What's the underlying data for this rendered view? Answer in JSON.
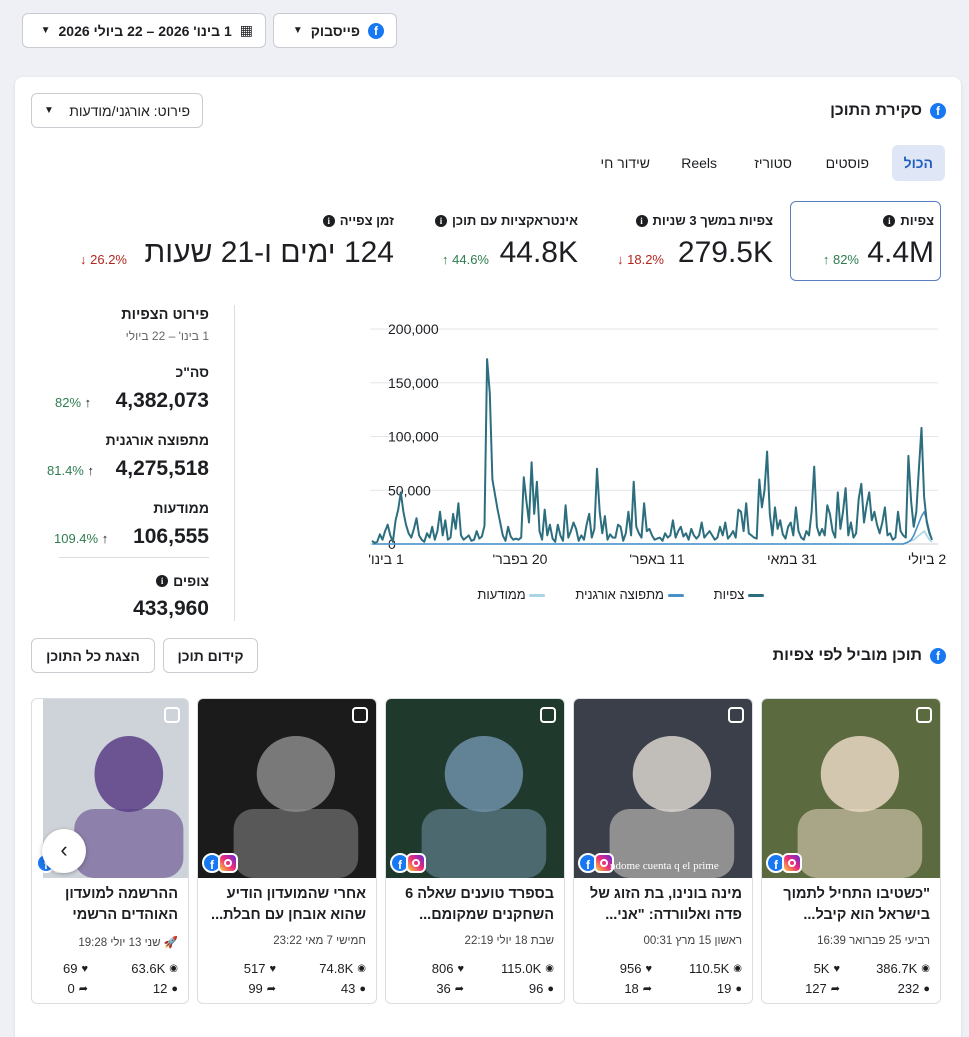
{
  "filters": {
    "platform_label": "פייסבוק",
    "date_range_label": "1 בינו' 2026 – 22 ביולי 2026"
  },
  "overview": {
    "title": "סקירת התוכן",
    "breakdown_label": "פירוט: אורגני/מודעות",
    "tabs": [
      {
        "label": "הכול",
        "active": true
      },
      {
        "label": "פוסטים"
      },
      {
        "label": "סטוריז"
      },
      {
        "label": "Reels"
      },
      {
        "label": "שידור חי"
      }
    ]
  },
  "metrics": [
    {
      "label": "צפיות",
      "value": "4.4M",
      "change": "82%",
      "direction": "up"
    },
    {
      "label": "צפיות במשך 3 שניות",
      "value": "279.5K",
      "change": "18.2%",
      "direction": "down"
    },
    {
      "label": "אינטראקציות עם תוכן",
      "value": "44.8K",
      "change": "44.6%",
      "direction": "up"
    },
    {
      "label": "זמן צפייה",
      "value": "124 ימים ו-21 שעות",
      "change": "26.2%",
      "direction": "down"
    }
  ],
  "breakdown": {
    "title": "פירוט הצפיות",
    "range": "1 בינו' – 22 ביולי",
    "rows": [
      {
        "label": "סה\"כ",
        "value": "4,382,073",
        "change": "82%"
      },
      {
        "label": "מתפוצה אורגנית",
        "value": "4,275,518",
        "change": "81.4%"
      },
      {
        "label": "ממודעות",
        "value": "106,555",
        "change": "109.4%"
      }
    ],
    "viewers_label": "צופים",
    "viewers_value": "433,960"
  },
  "chart_data": {
    "type": "line",
    "y_ticks": [
      "200,000",
      "150,000",
      "100,000",
      "50,000",
      "0"
    ],
    "ylim": [
      0,
      200000
    ],
    "x_ticks": [
      "1 בינו'",
      "20 בפבר'",
      "11 באפר'",
      "31 במאי",
      "2 ביולי"
    ],
    "legend": [
      "צפיות",
      "מתפוצה אורגנית",
      "ממודעות"
    ],
    "series": [
      {
        "name": "צפיות",
        "color": "#2d6e7e",
        "values": [
          3000,
          1000,
          2000,
          9000,
          4000,
          12000,
          18000,
          8000,
          2000,
          22000,
          32000,
          48000,
          30000,
          18000,
          10000,
          6000,
          14000,
          24000,
          8000,
          4000,
          2000,
          10000,
          6000,
          16000,
          4000,
          12000,
          30000,
          8000,
          22000,
          4000,
          6000,
          28000,
          14000,
          38000,
          8000,
          4000,
          6000,
          8000,
          3000,
          4000,
          12000,
          5000,
          7000,
          17000,
          172000,
          140000,
          60000,
          46000,
          32000,
          20000,
          8000,
          3000,
          16000,
          7000,
          4000,
          5000,
          4000,
          6000,
          62000,
          40000,
          20000,
          76000,
          28000,
          58000,
          12000,
          4000,
          32000,
          8000,
          18000,
          5000,
          2000,
          18000,
          8000,
          3000,
          36000,
          6000,
          12000,
          20000,
          14000,
          3000,
          8000,
          4000,
          18000,
          28000,
          6000,
          14000,
          70000,
          30000,
          10000,
          26000,
          4000,
          9000,
          6000,
          6000,
          18000,
          16000,
          3000,
          10000,
          30000,
          8000,
          58000,
          16000,
          10000,
          6000,
          38000,
          12000,
          14000,
          8000,
          4000,
          5000,
          6000,
          3000,
          10000,
          6000,
          8000,
          22000,
          6000,
          12000,
          16000,
          7000,
          10000,
          4000,
          14000,
          8000,
          5000,
          8000,
          20000,
          6000,
          9000,
          12000,
          8000,
          4000,
          6000,
          16000,
          8000,
          20000,
          5000,
          8000,
          12000,
          6000,
          32000,
          30000,
          12000,
          38000,
          10000,
          8000,
          6000,
          5000,
          60000,
          34000,
          50000,
          86000,
          28000,
          8000,
          34000,
          14000,
          22000,
          9000,
          5000,
          16000,
          20000,
          8000,
          34000,
          12000,
          6000,
          4000,
          12000,
          8000,
          30000,
          72000,
          16000,
          8000,
          14000,
          8000,
          36000,
          28000,
          12000,
          6000,
          48000,
          14000,
          30000,
          52000,
          8000,
          20000,
          6000,
          10000,
          42000,
          56000,
          20000,
          36000,
          48000,
          22000,
          30000,
          18000,
          10000,
          20000,
          34000,
          8000,
          10000,
          4000,
          6000,
          30000,
          12000,
          8000,
          6000,
          82000,
          40000,
          16000,
          30000,
          70000,
          108000,
          44000,
          20000,
          10000,
          4000
        ]
      },
      {
        "name": "מתפוצה אורגנית",
        "color": "#4a90c8",
        "values": [
          0,
          0,
          0,
          0,
          0,
          0,
          0,
          0,
          0,
          0,
          0,
          0,
          0,
          0,
          0,
          0,
          0,
          0,
          0,
          0,
          0,
          0,
          0,
          0,
          0,
          0,
          0,
          0,
          0,
          0,
          0,
          0,
          0,
          0,
          0,
          0,
          0,
          0,
          0,
          0,
          0,
          0,
          0,
          0,
          0,
          0,
          0,
          0,
          0,
          0,
          0,
          0,
          0,
          0,
          0,
          0,
          0,
          0,
          0,
          0,
          0,
          0,
          0,
          0,
          0,
          0,
          0,
          0,
          0,
          0,
          0,
          0,
          0,
          0,
          0,
          0,
          0,
          0,
          0,
          0,
          0,
          0,
          0,
          0,
          0,
          0,
          0,
          0,
          0,
          0,
          0,
          0,
          0,
          0,
          0,
          0,
          0,
          0,
          0,
          0,
          0,
          0,
          0,
          0,
          0,
          0,
          0,
          0,
          0,
          0,
          0,
          0,
          0,
          0,
          0,
          0,
          0,
          0,
          0,
          0,
          0,
          0,
          0,
          0,
          0,
          0,
          0,
          0,
          0,
          0,
          0,
          0,
          0,
          0,
          0,
          0,
          0,
          0,
          0,
          0,
          0,
          0,
          0,
          0,
          0,
          0,
          0,
          0,
          0,
          0,
          0,
          0,
          0,
          0,
          0,
          0,
          0,
          0,
          0,
          0,
          0,
          0,
          0,
          0,
          0,
          0,
          0,
          0,
          0,
          0,
          0,
          0,
          0,
          0,
          0,
          0,
          0,
          0,
          0,
          0,
          0,
          0,
          0,
          0,
          0,
          0,
          0,
          0,
          0,
          0,
          0,
          0,
          0,
          0,
          0,
          0,
          0,
          0,
          0,
          0,
          0,
          0,
          0,
          0,
          0,
          1000,
          2000,
          4000,
          8000,
          14000,
          20000,
          26000,
          30000,
          22000,
          12000,
          4000
        ]
      },
      {
        "name": "ממודעות",
        "color": "#a8d4e6",
        "values": [
          0,
          0,
          0,
          0,
          0,
          0,
          0,
          0,
          0,
          0,
          0,
          0,
          0,
          0,
          0,
          0,
          0,
          0,
          0,
          0,
          0,
          0,
          0,
          0,
          0,
          0,
          0,
          0,
          0,
          0,
          0,
          0,
          0,
          0,
          0,
          0,
          0,
          0,
          0,
          0,
          0,
          0,
          0,
          0,
          0,
          0,
          0,
          0,
          0,
          0,
          0,
          0,
          0,
          0,
          0,
          0,
          0,
          0,
          0,
          0,
          0,
          0,
          0,
          0,
          0,
          0,
          0,
          0,
          0,
          0,
          0,
          0,
          0,
          0,
          0,
          0,
          0,
          0,
          0,
          0,
          0,
          0,
          0,
          0,
          0,
          0,
          0,
          0,
          0,
          0,
          0,
          0,
          0,
          0,
          0,
          0,
          0,
          0,
          0,
          0,
          0,
          0,
          0,
          0,
          0,
          0,
          0,
          0,
          0,
          0,
          0,
          0,
          0,
          0,
          0,
          0,
          0,
          0,
          0,
          0,
          0,
          0,
          0,
          0,
          0,
          0,
          0,
          0,
          0,
          0,
          0,
          0,
          0,
          0,
          0,
          0,
          0,
          0,
          0,
          0,
          0,
          0,
          0,
          0,
          0,
          0,
          0,
          0,
          0,
          0,
          0,
          0,
          0,
          0,
          0,
          0,
          0,
          0,
          0,
          0,
          0,
          0,
          0,
          0,
          0,
          0,
          0,
          0,
          0,
          0,
          0,
          0,
          0,
          0,
          0,
          0,
          0,
          0,
          0,
          0,
          0,
          0,
          0,
          0,
          0,
          0,
          0,
          0,
          0,
          0,
          0,
          0,
          0,
          0,
          0,
          0,
          0,
          0,
          0,
          0,
          0,
          0,
          0,
          0,
          0,
          0,
          1000,
          2000,
          3000,
          4000,
          6000,
          8000,
          10000,
          12000,
          8000,
          4000,
          2000
        ]
      }
    ]
  },
  "top_content": {
    "title": "תוכן מוביל לפי צפיות",
    "boost_label": "קידום תוכן",
    "show_all_label": "הצגת כל התוכן",
    "posts": [
      {
        "title": "\"כשטיבו התחיל לתמוך בישראל הוא קיבל...",
        "date": "רביעי 25 פברואר 16:39",
        "views": "386.7K",
        "likes": "5K",
        "comments": "232",
        "shares": "127",
        "bg": "#5b6a3f",
        "accent": "#e9d7c3"
      },
      {
        "title": "מינה בונינו, בת הזוג של פדה ואלוורדה: \"אני...",
        "date": "ראשון 15 מרץ 00:31",
        "views": "110.5K",
        "likes": "956",
        "comments": "19",
        "shares": "18",
        "caption": "ndome cuenta q el prime",
        "bg": "#3a3f4a",
        "accent": "#d9d4cc"
      },
      {
        "title": "בספרד טוענים שאלה 6 השחקנים שמקומם...",
        "date": "שבת 18 יולי 22:19",
        "views": "115.0K",
        "likes": "806",
        "comments": "96",
        "shares": "36",
        "bg": "#1f3a2c",
        "accent": "#6f8fa8"
      },
      {
        "title": "אחרי שהמועדון הודיע שהוא אובחן עם חבלת...",
        "date": "חמישי 7 מאי 23:22",
        "views": "74.8K",
        "likes": "517",
        "comments": "43",
        "shares": "99",
        "bg": "#1b1b1b",
        "accent": "#8a8a8a"
      },
      {
        "title": "ההרשמה למועדון האוהדים הרשמי של...",
        "date": "שני 13 יולי 19:28",
        "views": "63.6K",
        "likes": "69",
        "comments": "12",
        "shares": "0",
        "bg": "#cdd3d8",
        "accent": "#5a3d86"
      }
    ]
  }
}
